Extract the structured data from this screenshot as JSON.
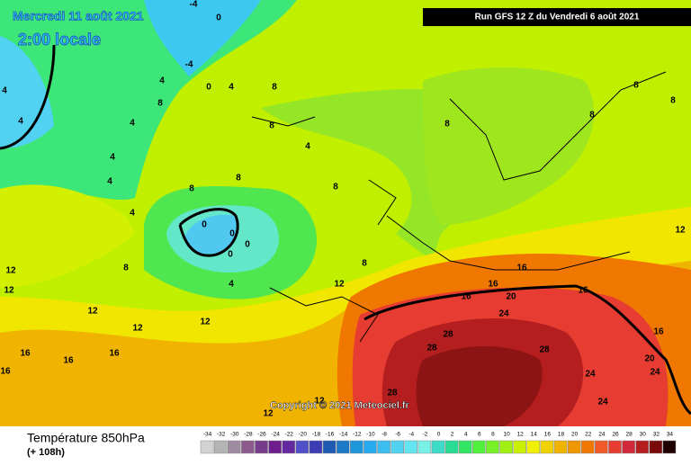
{
  "header": {
    "date": "Mercredi 11 août 2021",
    "time": "2:00 locale",
    "run": "Run GFS 12 Z du Vendredi 6 août 2021"
  },
  "map": {
    "copyright": "Copyright © 2021 Meteociel.fr",
    "contour_labels": [
      0,
      -4,
      -4,
      0,
      4,
      4,
      8,
      4,
      4,
      4,
      4,
      8,
      8,
      8,
      4,
      8,
      8,
      8,
      0,
      0,
      0,
      0,
      4,
      8,
      12,
      12,
      12,
      12,
      12,
      12,
      16,
      16,
      16,
      16,
      16,
      16,
      16,
      16,
      20,
      24,
      28,
      28,
      28,
      28,
      24,
      24,
      20,
      24,
      16,
      12,
      8,
      8,
      8,
      8,
      4,
      4,
      12,
      12
    ]
  },
  "footer": {
    "title": "Température 850hPa",
    "lead": "(+ 108h)"
  },
  "legend": {
    "values": [
      -34,
      -32,
      -30,
      -28,
      -26,
      -24,
      -22,
      -20,
      -18,
      -16,
      -14,
      -12,
      -10,
      -8,
      -6,
      -4,
      -2,
      0,
      2,
      4,
      6,
      8,
      10,
      12,
      14,
      16,
      18,
      20,
      22,
      24,
      26,
      28,
      30,
      32,
      34
    ],
    "colors": [
      "#d2d2d2",
      "#b4b4b4",
      "#a08ca0",
      "#8c5a8c",
      "#783c8c",
      "#6e1e8c",
      "#6428a0",
      "#5050c8",
      "#3c3cb4",
      "#1e5ab4",
      "#1e78c8",
      "#1e96dc",
      "#28aaf0",
      "#3cbef0",
      "#50d2f0",
      "#64e6f0",
      "#78f0e6",
      "#3cdcc8",
      "#28dc96",
      "#32e664",
      "#50f03c",
      "#78f028",
      "#a0f014",
      "#c8f000",
      "#f0f000",
      "#f0d200",
      "#f0b400",
      "#f09600",
      "#f07800",
      "#f05a28",
      "#e63c32",
      "#d2283c",
      "#b41e1e",
      "#7a0a0a",
      "#1e0000"
    ]
  }
}
